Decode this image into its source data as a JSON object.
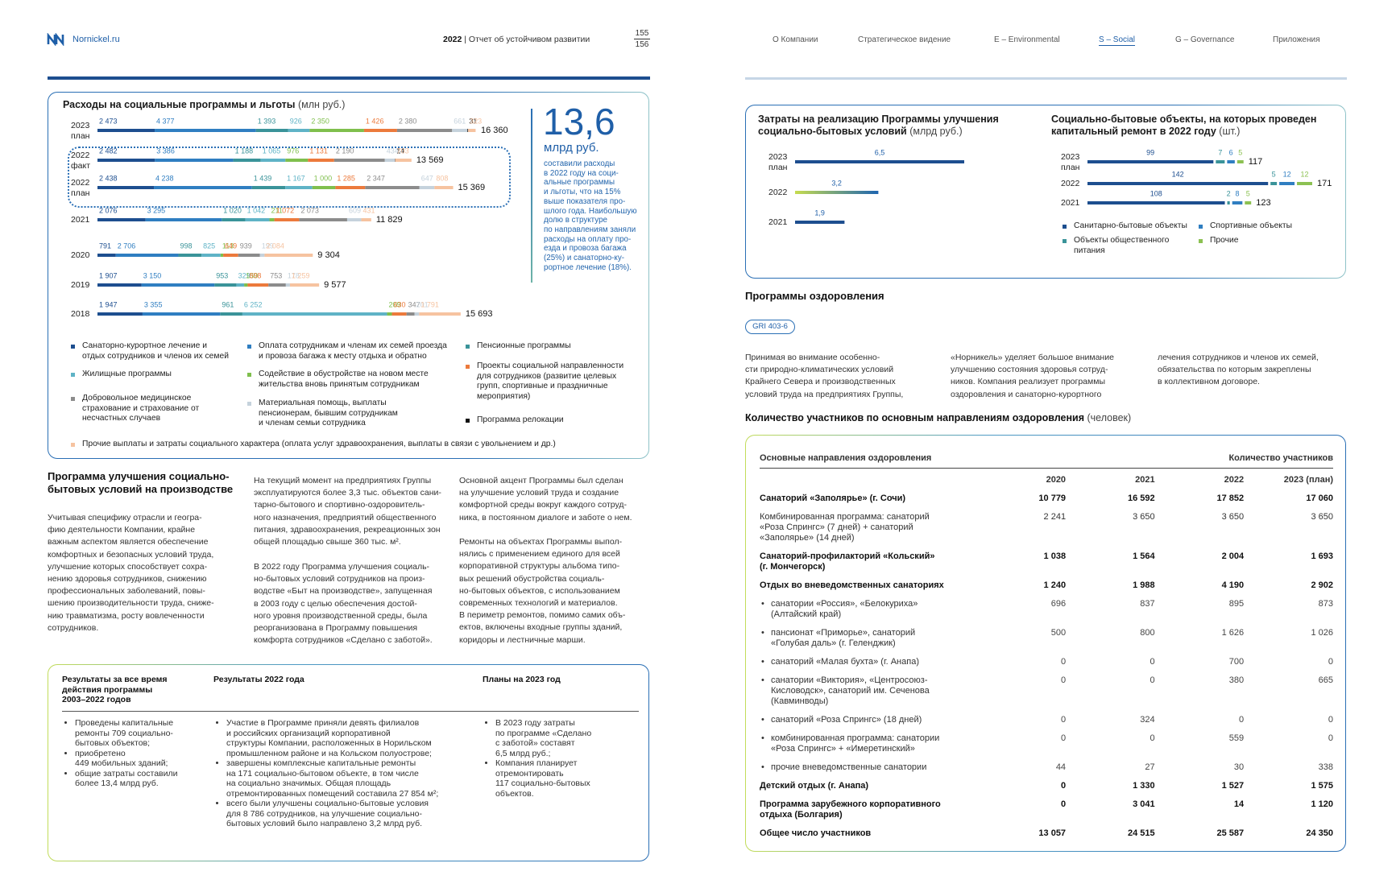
{
  "header": {
    "site": "Nornickel.ru",
    "year": "2022",
    "report": "Отчет об устойчивом развитии",
    "page": "155",
    "pages": "156",
    "nav": [
      "О Компании",
      "Стратегическое видение",
      "E – Environmental",
      "S – Social",
      "G – Governance",
      "Приложения"
    ]
  },
  "chart_data": [
    {
      "type": "bar",
      "stacked": true,
      "orientation": "horizontal",
      "title": "Расходы на социальные программы и льготы",
      "unit": "(млн руб.)",
      "categories": [
        {
          "year": "2023",
          "status": "план"
        },
        {
          "year": "2022",
          "status": "факт"
        },
        {
          "year": "2022",
          "status": "план"
        },
        {
          "year": "2021"
        },
        {
          "year": "2020"
        },
        {
          "year": "2019"
        },
        {
          "year": "2018"
        }
      ],
      "series": [
        {
          "name": "Санаторно-курортное лечение и\nотдых сотрудников и членов их семей",
          "color": "#1d4e8f",
          "values": [
            2473,
            2482,
            2438,
            2076,
            791,
            1907,
            1947
          ],
          "value_labels": [
            "2 473",
            "2 482",
            "2 438",
            "2 076",
            "791",
            "1 907",
            "1 947"
          ]
        },
        {
          "name": "Оплата сотрудникам и членам их семей проезда\nи провоза багажа к месту отдыха и обратно",
          "color": "#2f7ec1",
          "values": [
            4377,
            3386,
            4238,
            3295,
            2706,
            3150,
            3355
          ],
          "value_labels": [
            "4 377",
            "3 386",
            "4 238",
            "3 295",
            "2 706",
            "3 150",
            "3 355"
          ]
        },
        {
          "name": "Пенсионные программы",
          "color": "#3a9399",
          "values": [
            1393,
            1188,
            1439,
            1020,
            998,
            953,
            961
          ],
          "value_labels": [
            "1 393",
            "1 188",
            "1 439",
            "1 020",
            "998",
            "953",
            "961"
          ]
        },
        {
          "name": "Жилищные программы",
          "color": "#5fb3c6",
          "values": [
            926,
            1065,
            1167,
            1042,
            825,
            329,
            6252
          ],
          "value_labels": [
            "926",
            "1 065",
            "1 167",
            "1 042",
            "825",
            "329",
            "6 252"
          ]
        },
        {
          "name": "Содействие в обустройстве на новом месте\nжительства вновь принятым сотрудникам",
          "color": "#7fbf4d",
          "values": [
            2350,
            976,
            1000,
            211,
            113,
            150,
            209
          ],
          "value_labels": [
            "2 350",
            "976",
            "1 000",
            "211",
            "113",
            "150",
            "209"
          ]
        },
        {
          "name": "Проекты социальной направленности\nдля сотрудников (развитие целевых\nгрупп, спортивные и праздничные\nмероприятия)",
          "color": "#ec7a3c",
          "values": [
            1426,
            1131,
            1285,
            1072,
            649,
            898,
            630
          ],
          "value_labels": [
            "1 426",
            "1 131",
            "1 285",
            "1 072",
            "649",
            "898",
            "630"
          ]
        },
        {
          "name": "Добровольное медицинское\nстрахование и страхование от\nнесчастных случаев",
          "color": "#8c8c8c",
          "values": [
            2380,
            2190,
            2347,
            2073,
            939,
            753,
            347
          ],
          "value_labels": [
            "2 380",
            "2 190",
            "2 347",
            "2 073",
            "939",
            "753",
            "347"
          ]
        },
        {
          "name": "Материальная помощь, выплаты\nпенсионерам, бывшим сотрудникам\nи членам семьи сотрудника",
          "color": "#c5d2dc",
          "values": [
            661,
            434,
            647,
            609,
            199,
            178,
            201
          ],
          "value_labels": [
            "661",
            "434",
            "647",
            "609",
            "199",
            "178",
            "201"
          ]
        },
        {
          "name": "Программа релокации",
          "color": "#111111",
          "values": [
            31,
            14,
            null,
            null,
            null,
            null,
            null
          ],
          "value_labels": [
            "31",
            "14",
            null,
            null,
            null,
            null,
            null
          ]
        },
        {
          "name": "Прочие выплаты и затраты социального характера (оплата услуг здравоохранения, выплаты в связи с увольнением и др.)",
          "color": "#f6c3a0",
          "values": [
            323,
            703,
            808,
            431,
            2084,
            1259,
            1791
          ],
          "value_labels": [
            "323",
            "703",
            "808",
            "431",
            "2 084",
            "1 259",
            "1 791"
          ]
        }
      ],
      "totals": [
        16360,
        13569,
        15369,
        11829,
        9304,
        9577,
        15693
      ],
      "total_labels": [
        "16 360",
        "13 569",
        "15 369",
        "11 829",
        "9 304",
        "9 577",
        "15 693"
      ]
    },
    {
      "type": "bar",
      "orientation": "horizontal",
      "title": "Затраты на реализацию Программы улучшения\nсоциально-бытовых условий",
      "unit": "(млрд руб.)",
      "categories": [
        {
          "year": "2023",
          "status": "план"
        },
        {
          "year": "2022"
        },
        {
          "year": "2021"
        }
      ],
      "values": [
        6.5,
        3.2,
        1.9
      ],
      "value_labels": [
        "6,5",
        "3,2",
        "1,9"
      ],
      "colors": [
        "#1d4e8f",
        [
          "#c6dc4f",
          "#1d64b0"
        ],
        "#1d4e8f"
      ]
    },
    {
      "type": "bar",
      "stacked": true,
      "orientation": "horizontal",
      "title": "Социально-бытовые объекты, на которых проведен\nкапитальный ремонт в 2022 году",
      "unit": "(шт.)",
      "categories": [
        {
          "year": "2023",
          "status": "план"
        },
        {
          "year": "2022"
        },
        {
          "year": "2021"
        }
      ],
      "series": [
        {
          "name": "Санитарно-бытовые объекты",
          "color": "#1d4e8f",
          "values": [
            99,
            142,
            108
          ]
        },
        {
          "name": "Объекты общественного\nпитания",
          "color": "#3a9399",
          "values": [
            7,
            5,
            2
          ]
        },
        {
          "name": "Спортивные объекты",
          "color": "#2f7ec1",
          "values": [
            6,
            12,
            8
          ]
        },
        {
          "name": "Прочие",
          "color": "#8cc152",
          "values": [
            5,
            12,
            5
          ]
        }
      ],
      "totals": [
        117,
        171,
        123
      ]
    }
  ],
  "highlight": {
    "value": "13,6",
    "unit": "млрд руб.",
    "text": "составили расходы\nв 2022 году на соци-\nальные программы\nи льготы, что на 15%\nвыше показателя про-\nшлого года. Наибольшую\nдолю в структуре\nпо направлениям заняли\nрасходы на оплату про-\nезда и провоза багажа\n(25%) и санаторно-ку-\nрортное лечение (18%)."
  },
  "program": {
    "heading": "Программа улучшения социально-\nбытовых условий на производстве",
    "paragraphs": [
      "Учитывая специфику отрасли и геогра-\nфию деятельности Компании, крайне\nважным аспектом является обеспечение\nкомфортных и безопасных условий труда,\nулучшение которых способствует сохра-\nнению здоровья сотрудников, снижению\nпрофессиональных заболеваний, повы-\nшению производительности труда, сниже-\nнию травматизма, росту вовлеченности\nсотрудников.",
      "На текущий момент на предприятиях Группы\nэксплуатируются более 3,3 тыс. объектов сани-\nтарно-бытового и спортивно-оздоровитель-\nного назначения, предприятий общественного\nпитания, здравоохранения, рекреационных зон\nобщей площадью свыше 360 тыс. м².",
      "В 2022 году Программа улучшения социаль-\nно-бытовых условий сотрудников на произ-\nводстве «Быт на производстве», запущенная\nв 2003 году с целью обеспечения достой-\nного уровня производственной среды, была\nреорганизована в Программу повышения\nкомфорта сотрудников «Сделано с заботой».",
      "Основной акцент Программы был сделан\nна улучшение условий труда и создание\nкомфортной среды вокруг каждого сотруд-\nника, в постоянном диалоге и заботе о нем.",
      "Ремонты на объектах Программы выпол-\nнялись с применением единого для всей\nкорпоративной структуры альбома типо-\nвых решений обустройства социаль-\nно-бытовых объектов, с использованием\nсовременных технологий и материалов.\nВ периметр ремонтов, помимо самих объ-\nектов, включены входные группы зданий,\nкоридоры и лестничные марши."
    ]
  },
  "results": [
    {
      "heading": "Результаты за все время\nдействия программы\n2003–2022 годов",
      "items": [
        "Проведены капитальные\nремонты 709 социально-\nбытовых объектов;",
        "приобретено\n449 мобильных зданий;",
        "общие затраты составили\nболее 13,4 млрд руб."
      ]
    },
    {
      "heading": "Результаты 2022 года",
      "items": [
        "Участие в Программе приняли девять филиалов\nи российских организаций корпоративной\nструктуры Компании, расположенных в Норильском\nпромышленном районе и на Кольском полуострове;",
        "завершены комплексные капитальные ремонты\nна 171 социально-бытовом объекте, в том числе\nна социально значимых. Общая площадь\nотремонтированных помещений составила 27 854 м²;",
        "всего были улучшены социально-бытовые условия\nдля 8 786 сотрудников, на улучшение социально-\nбытовых условий было направлено 3,2 млрд руб."
      ]
    },
    {
      "heading": "Планы на 2023 год",
      "items": [
        "В 2023 году затраты\nпо программе «Сделано\nс заботой» составят\n6,5 млрд руб.;",
        "Компания планирует\nотремонтировать\n117 социально-бытовых\nобъектов."
      ]
    }
  ],
  "health": {
    "heading": "Программы оздоровления",
    "badge": "GRI 403-6",
    "paragraphs": [
      "Принимая во внимание особенно-\nсти природно-климатических условий\nКрайнего Севера и производственных\nусловий труда на предприятиях Группы,",
      "«Норникель» уделяет большое внимание\nулучшению состояния здоровья сотруд-\nников. Компания реализует программы\nоздоровления и санаторно-курортного",
      "лечения сотрудников и членов их семей,\nобязательства по которым закреплены\nв коллективном договоре."
    ],
    "table_title": "Количество участников по основным направлениям оздоровления",
    "table_unit": "(человек)",
    "table": {
      "col_header": "Основные направления оздоровления",
      "group_header": "Количество участников",
      "years": [
        "2020",
        "2021",
        "2022",
        "2023 (план)"
      ],
      "rows": [
        {
          "name": "Санаторий «Заполярье» (г. Сочи)",
          "emphasis": true,
          "values": [
            "10 779",
            "16 592",
            "17 852",
            "17 060"
          ]
        },
        {
          "name": "Комбинированная программа: санаторий\n«Роза Спрингс» (7 дней) + санаторий\n«Заполярье» (14 дней)",
          "emphasis": false,
          "values": [
            "2 241",
            "3 650",
            "3 650",
            "3 650"
          ]
        },
        {
          "name": "Санаторий-профилакторий «Кольский»\n(г. Мончегорск)",
          "emphasis": true,
          "values": [
            "1 038",
            "1 564",
            "2 004",
            "1 693"
          ]
        },
        {
          "name": "Отдых во вневедомственных санаториях",
          "emphasis": true,
          "values": [
            "1 240",
            "1 988",
            "4 190",
            "2 902"
          ],
          "items": [
            {
              "name": "санатории «Россия», «Белокуриха»\n(Алтайский край)",
              "values": [
                "696",
                "837",
                "895",
                "873"
              ]
            },
            {
              "name": "пансионат «Приморье», санаторий\n«Голубая даль» (г. Геленджик)",
              "values": [
                "500",
                "800",
                "1 626",
                "1 026"
              ]
            },
            {
              "name": "санаторий «Малая бухта» (г. Анапа)",
              "values": [
                "0",
                "0",
                "700",
                "0"
              ]
            },
            {
              "name": "санатории «Виктория», «Центросоюз-\nКисловодск», санаторий им. Сеченова\n(Кавминводы)",
              "values": [
                "0",
                "0",
                "380",
                "665"
              ]
            },
            {
              "name": "санаторий «Роза Спрингс» (18 дней)",
              "values": [
                "0",
                "324",
                "0",
                "0"
              ]
            },
            {
              "name": "комбинированная программа: санатории\n«Роза Спрингс» + «Имеретинский»",
              "values": [
                "0",
                "0",
                "559",
                "0"
              ]
            },
            {
              "name": "прочие вневедомственные санатории",
              "values": [
                "44",
                "27",
                "30",
                "338"
              ]
            }
          ]
        },
        {
          "name": "Детский отдых (г. Анапа)",
          "emphasis": true,
          "values": [
            "0",
            "1 330",
            "1 527",
            "1 575"
          ]
        },
        {
          "name": "Программа зарубежного корпоративного\nотдыха (Болгария)",
          "emphasis": true,
          "values": [
            "0",
            "3 041",
            "14",
            "1 120"
          ]
        },
        {
          "name": "Общее число участников",
          "emphasis": true,
          "values": [
            "13 057",
            "24 515",
            "25 587",
            "24 350"
          ]
        }
      ]
    }
  }
}
